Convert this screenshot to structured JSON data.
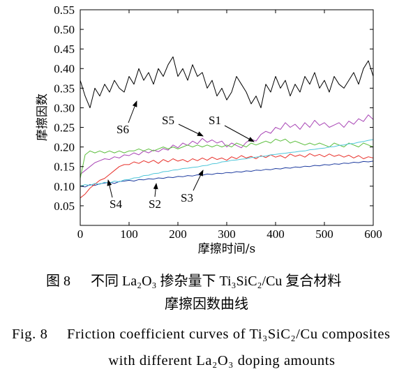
{
  "chart_data": {
    "type": "line",
    "xlabel": "摩擦时间/s",
    "ylabel": "摩擦因数",
    "xlim": [
      0,
      600
    ],
    "ylim": [
      0,
      0.55
    ],
    "xticks": [
      0,
      100,
      200,
      300,
      400,
      500,
      600
    ],
    "yticks": [
      "0.05",
      "0.10",
      "0.15",
      "0.20",
      "0.25",
      "0.30",
      "0.35",
      "0.40",
      "0.45",
      "0.50",
      "0.55"
    ],
    "grid": false,
    "legend": "none",
    "x": [
      0,
      10,
      20,
      30,
      40,
      50,
      60,
      70,
      80,
      90,
      100,
      110,
      120,
      130,
      140,
      150,
      160,
      170,
      180,
      190,
      200,
      210,
      220,
      230,
      240,
      250,
      260,
      270,
      280,
      290,
      300,
      310,
      320,
      330,
      340,
      350,
      360,
      370,
      380,
      390,
      400,
      410,
      420,
      430,
      440,
      450,
      460,
      470,
      480,
      490,
      500,
      510,
      520,
      530,
      540,
      550,
      560,
      570,
      580,
      590,
      600
    ],
    "series": [
      {
        "name": "S1",
        "color": "#5dbf3f",
        "values": [
          0.12,
          0.18,
          0.19,
          0.185,
          0.19,
          0.185,
          0.19,
          0.185,
          0.19,
          0.185,
          0.19,
          0.19,
          0.195,
          0.19,
          0.195,
          0.19,
          0.195,
          0.2,
          0.195,
          0.2,
          0.195,
          0.2,
          0.205,
          0.2,
          0.205,
          0.2,
          0.205,
          0.2,
          0.205,
          0.2,
          0.205,
          0.2,
          0.21,
          0.205,
          0.2,
          0.21,
          0.205,
          0.21,
          0.215,
          0.21,
          0.22,
          0.215,
          0.22,
          0.21,
          0.215,
          0.21,
          0.205,
          0.21,
          0.205,
          0.21,
          0.205,
          0.2,
          0.21,
          0.205,
          0.2,
          0.21,
          0.205,
          0.2,
          0.21,
          0.205,
          0.2
        ]
      },
      {
        "name": "S2",
        "color": "#1c3a9e",
        "values": [
          0.1,
          0.098,
          0.104,
          0.102,
          0.106,
          0.108,
          0.11,
          0.107,
          0.112,
          0.113,
          0.115,
          0.113,
          0.117,
          0.116,
          0.119,
          0.118,
          0.121,
          0.12,
          0.123,
          0.122,
          0.125,
          0.124,
          0.127,
          0.126,
          0.129,
          0.128,
          0.131,
          0.13,
          0.133,
          0.132,
          0.135,
          0.134,
          0.137,
          0.136,
          0.139,
          0.138,
          0.141,
          0.14,
          0.143,
          0.142,
          0.145,
          0.144,
          0.147,
          0.146,
          0.149,
          0.148,
          0.151,
          0.15,
          0.153,
          0.152,
          0.155,
          0.154,
          0.157,
          0.156,
          0.159,
          0.158,
          0.161,
          0.16,
          0.163,
          0.162,
          0.164
        ]
      },
      {
        "name": "S3",
        "color": "#4fc6d9",
        "values": [
          0.1,
          0.104,
          0.102,
          0.107,
          0.105,
          0.11,
          0.108,
          0.113,
          0.111,
          0.116,
          0.117,
          0.121,
          0.122,
          0.127,
          0.128,
          0.132,
          0.133,
          0.137,
          0.138,
          0.141,
          0.142,
          0.145,
          0.146,
          0.148,
          0.149,
          0.152,
          0.153,
          0.157,
          0.158,
          0.162,
          0.163,
          0.166,
          0.167,
          0.169,
          0.17,
          0.173,
          0.174,
          0.176,
          0.177,
          0.18,
          0.181,
          0.183,
          0.184,
          0.186,
          0.187,
          0.189,
          0.19,
          0.193,
          0.194,
          0.196,
          0.197,
          0.2,
          0.201,
          0.204,
          0.205,
          0.208,
          0.209,
          0.212,
          0.214,
          0.217,
          0.219
        ]
      },
      {
        "name": "S4",
        "color": "#e8302a",
        "values": [
          0.07,
          0.08,
          0.095,
          0.105,
          0.115,
          0.12,
          0.13,
          0.14,
          0.15,
          0.155,
          0.155,
          0.162,
          0.158,
          0.165,
          0.16,
          0.166,
          0.158,
          0.168,
          0.162,
          0.17,
          0.164,
          0.168,
          0.162,
          0.17,
          0.165,
          0.172,
          0.166,
          0.174,
          0.168,
          0.172,
          0.166,
          0.175,
          0.17,
          0.178,
          0.172,
          0.176,
          0.17,
          0.178,
          0.173,
          0.18,
          0.174,
          0.178,
          0.172,
          0.182,
          0.176,
          0.18,
          0.174,
          0.183,
          0.177,
          0.181,
          0.175,
          0.182,
          0.176,
          0.18,
          0.174,
          0.179,
          0.172,
          0.178,
          0.17,
          0.175,
          0.172
        ]
      },
      {
        "name": "S5",
        "color": "#a845b5",
        "values": [
          0.13,
          0.14,
          0.15,
          0.16,
          0.165,
          0.17,
          0.168,
          0.175,
          0.172,
          0.18,
          0.178,
          0.185,
          0.18,
          0.19,
          0.185,
          0.192,
          0.188,
          0.196,
          0.192,
          0.205,
          0.198,
          0.21,
          0.204,
          0.215,
          0.208,
          0.222,
          0.212,
          0.218,
          0.21,
          0.215,
          0.2,
          0.21,
          0.204,
          0.198,
          0.212,
          0.22,
          0.215,
          0.232,
          0.24,
          0.235,
          0.25,
          0.245,
          0.262,
          0.25,
          0.258,
          0.245,
          0.262,
          0.25,
          0.268,
          0.255,
          0.262,
          0.25,
          0.256,
          0.262,
          0.25,
          0.266,
          0.258,
          0.272,
          0.265,
          0.282,
          0.27
        ]
      },
      {
        "name": "S6",
        "color": "#000000",
        "values": [
          0.37,
          0.33,
          0.3,
          0.35,
          0.33,
          0.36,
          0.34,
          0.37,
          0.35,
          0.34,
          0.38,
          0.36,
          0.4,
          0.37,
          0.39,
          0.36,
          0.4,
          0.38,
          0.41,
          0.43,
          0.38,
          0.4,
          0.37,
          0.41,
          0.38,
          0.39,
          0.35,
          0.37,
          0.33,
          0.35,
          0.32,
          0.34,
          0.38,
          0.36,
          0.34,
          0.31,
          0.33,
          0.3,
          0.36,
          0.34,
          0.38,
          0.35,
          0.37,
          0.33,
          0.36,
          0.34,
          0.38,
          0.36,
          0.39,
          0.35,
          0.37,
          0.34,
          0.38,
          0.36,
          0.35,
          0.37,
          0.39,
          0.36,
          0.4,
          0.42,
          0.38
        ]
      }
    ]
  },
  "caption": {
    "cn_label": "图 8",
    "cn_title": "不同 La₂O₃ 掺杂量下 Ti₃SiC₂/Cu 复合材料",
    "cn_title_line2": "摩擦因数曲线",
    "en_label": "Fig. 8",
    "en_title": "Friction coefficient curves of Ti₃SiC₂/Cu composites",
    "en_title_line2": "with different La₂O₃ doping amounts"
  }
}
